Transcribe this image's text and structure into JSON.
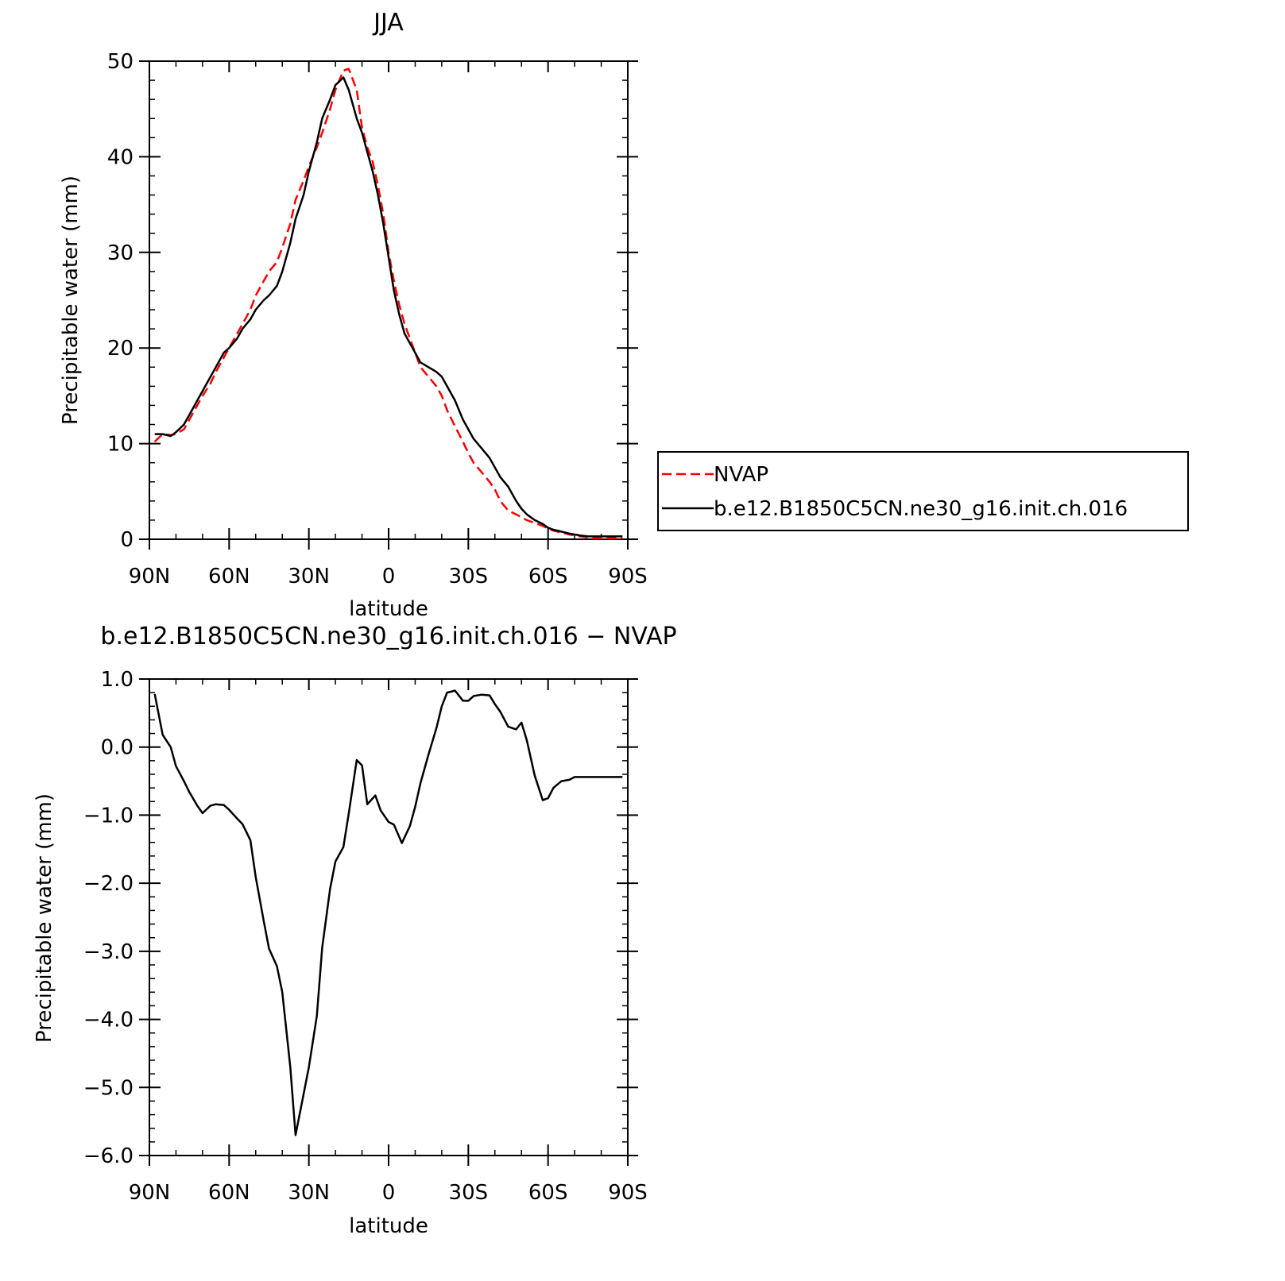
{
  "chart_data": [
    {
      "type": "line",
      "title": "JJA",
      "xlabel": "latitude",
      "ylabel": "Precipitable water (mm)",
      "xlim": [
        90,
        -90
      ],
      "ylim": [
        0,
        50
      ],
      "xticks": [
        90,
        60,
        30,
        0,
        -30,
        -60,
        -90
      ],
      "xtick_labels": [
        "90N",
        "60N",
        "30N",
        "0",
        "30S",
        "60S",
        "90S"
      ],
      "yticks": [
        0,
        10,
        20,
        30,
        40,
        50
      ],
      "ytick_labels": [
        "0",
        "10",
        "20",
        "30",
        "40",
        "50"
      ],
      "grid": false,
      "legend_position": "outside-right",
      "series": [
        {
          "name": "NVAP",
          "color": "#ff0000",
          "dash": "dashed",
          "x": [
            88,
            85,
            82,
            80,
            77,
            75,
            72,
            70,
            67,
            65,
            62,
            60,
            57,
            55,
            52,
            50,
            47,
            45,
            42,
            40,
            37,
            35,
            32,
            30,
            27,
            25,
            22,
            20,
            17,
            15,
            12,
            10,
            8,
            6,
            4,
            2,
            0,
            -2,
            -4,
            -6,
            -8,
            -10,
            -12,
            -15,
            -18,
            -20,
            -22,
            -25,
            -28,
            -30,
            -32,
            -35,
            -38,
            -40,
            -42,
            -45,
            -48,
            -50,
            -52,
            -55,
            -58,
            -60,
            -62,
            -65,
            -68,
            -70,
            -72,
            -75,
            -78,
            -80,
            -82,
            -85,
            -88
          ],
          "y": [
            10.2,
            11.0,
            10.9,
            11.0,
            11.5,
            12.5,
            14.0,
            15.0,
            16.3,
            17.5,
            19.0,
            20.0,
            21.5,
            22.5,
            24.0,
            25.5,
            27.0,
            28.0,
            29.0,
            30.5,
            33.0,
            35.5,
            37.5,
            39.0,
            41.0,
            42.5,
            45.0,
            47.0,
            49.0,
            49.2,
            47.0,
            43.0,
            41.0,
            39.5,
            37.0,
            34.0,
            30.0,
            27.0,
            24.5,
            22.5,
            21.0,
            19.5,
            18.0,
            17.0,
            16.0,
            15.0,
            13.5,
            11.8,
            10.2,
            9.0,
            8.0,
            7.0,
            6.0,
            5.2,
            4.0,
            3.0,
            2.6,
            2.3,
            2.0,
            1.7,
            1.4,
            1.1,
            0.9,
            0.7,
            0.5,
            0.4,
            0.3,
            0.2,
            0.1,
            0.1,
            0.1,
            0.1,
            0.1
          ]
        },
        {
          "name": "b.e12.B1850C5CN.ne30_g16.init.ch.016",
          "color": "#000000",
          "dash": "solid",
          "x": [
            88,
            85,
            82,
            80,
            77,
            75,
            72,
            70,
            67,
            65,
            62,
            60,
            57,
            55,
            52,
            50,
            47,
            45,
            42,
            40,
            37,
            35,
            32,
            30,
            27,
            25,
            22,
            20,
            17,
            15,
            12,
            10,
            8,
            6,
            4,
            2,
            0,
            -2,
            -4,
            -6,
            -8,
            -10,
            -12,
            -15,
            -18,
            -20,
            -22,
            -25,
            -28,
            -30,
            -32,
            -35,
            -38,
            -40,
            -42,
            -45,
            -48,
            -50,
            -52,
            -55,
            -58,
            -60,
            -62,
            -65,
            -68,
            -70,
            -72,
            -75,
            -78,
            -80,
            -82,
            -85,
            -88
          ],
          "y": [
            11.0,
            11.0,
            10.8,
            11.2,
            12.0,
            13.0,
            14.5,
            15.5,
            17.0,
            18.0,
            19.5,
            20.0,
            21.0,
            22.0,
            23.0,
            24.0,
            25.0,
            25.5,
            26.5,
            28.0,
            31.0,
            33.5,
            36.0,
            38.5,
            41.5,
            44.0,
            46.0,
            47.5,
            48.3,
            47.0,
            44.0,
            42.5,
            40.5,
            38.5,
            36.0,
            33.0,
            29.5,
            26.0,
            23.5,
            21.5,
            20.5,
            19.5,
            18.5,
            18.0,
            17.5,
            17.0,
            16.0,
            14.5,
            12.5,
            11.5,
            10.5,
            9.5,
            8.5,
            7.5,
            6.5,
            5.5,
            4.0,
            3.2,
            2.6,
            2.0,
            1.6,
            1.2,
            1.0,
            0.8,
            0.6,
            0.5,
            0.4,
            0.3,
            0.3,
            0.3,
            0.3,
            0.3,
            0.3
          ]
        }
      ]
    },
    {
      "type": "line",
      "title": "b.e12.B1850C5CN.ne30_g16.init.ch.016 − NVAP",
      "xlabel": "latitude",
      "ylabel": "Precipitable water (mm)",
      "xlim": [
        90,
        -90
      ],
      "ylim": [
        -6.0,
        1.0
      ],
      "xticks": [
        90,
        60,
        30,
        0,
        -30,
        -60,
        -90
      ],
      "xtick_labels": [
        "90N",
        "60N",
        "30N",
        "0",
        "30S",
        "60S",
        "90S"
      ],
      "yticks": [
        1.0,
        0.0,
        -1.0,
        -2.0,
        -3.0,
        -4.0,
        -5.0,
        -6.0
      ],
      "ytick_labels": [
        "1.0",
        "0.0",
        "−1.0",
        "−2.0",
        "−3.0",
        "−4.0",
        "−5.0",
        "−6.0"
      ],
      "grid": false,
      "series": [
        {
          "color": "#000000",
          "dash": "solid",
          "x": [
            88,
            85,
            82,
            80,
            77,
            75,
            72,
            70,
            67,
            65,
            62,
            60,
            57,
            55,
            52,
            50,
            47,
            45,
            42,
            40,
            37,
            35,
            32,
            30,
            27,
            25,
            22,
            20,
            17,
            15,
            12,
            10,
            8,
            5,
            3,
            0,
            -2,
            -5,
            -8,
            -10,
            -12,
            -15,
            -18,
            -20,
            -22,
            -25,
            -28,
            -30,
            -32,
            -35,
            -38,
            -40,
            -42,
            -45,
            -48,
            -50,
            -52,
            -55,
            -58,
            -60,
            -62,
            -65,
            -68,
            -70,
            -72,
            -75,
            -78,
            -80,
            -82,
            -85,
            -88
          ],
          "y": [
            0.78,
            0.18,
            0.0,
            -0.28,
            -0.5,
            -0.66,
            -0.86,
            -0.97,
            -0.86,
            -0.84,
            -0.85,
            -0.92,
            -1.05,
            -1.13,
            -1.37,
            -1.91,
            -2.55,
            -2.96,
            -3.22,
            -3.6,
            -4.7,
            -5.7,
            -5.1,
            -4.7,
            -3.95,
            -2.95,
            -2.08,
            -1.68,
            -1.47,
            -0.98,
            -0.19,
            -0.27,
            -0.84,
            -0.71,
            -0.93,
            -1.1,
            -1.14,
            -1.41,
            -1.16,
            -0.88,
            -0.53,
            -0.11,
            0.28,
            0.6,
            0.8,
            0.83,
            0.68,
            0.68,
            0.75,
            0.77,
            0.76,
            0.63,
            0.52,
            0.3,
            0.26,
            0.36,
            0.1,
            -0.42,
            -0.78,
            -0.75,
            -0.6,
            -0.5,
            -0.48,
            -0.44,
            -0.44,
            -0.44,
            -0.44,
            -0.44,
            -0.44,
            -0.44,
            -0.44
          ]
        }
      ]
    }
  ]
}
